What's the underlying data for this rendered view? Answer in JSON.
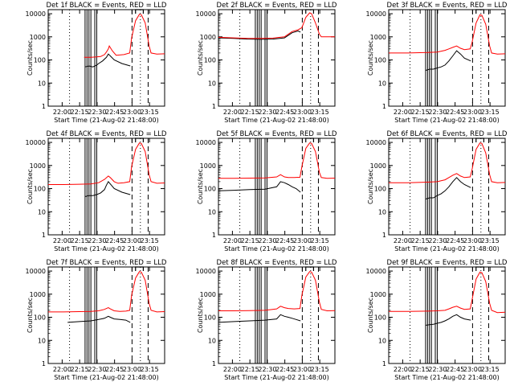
{
  "figure": {
    "colors": {
      "events": "#000000",
      "lld": "#ff0000",
      "axes": "#000000"
    },
    "common": {
      "xlabel": "Start Time (21-Aug-02 21:48:00)",
      "ylabel": "Counts/sec",
      "xtick_labels": [
        "22:00",
        "22:15",
        "22:30",
        "22:45",
        "23:00",
        "23:15"
      ],
      "xtick_minutes": [
        720,
        1620,
        2520,
        3420,
        4320,
        5220
      ],
      "ytick_labels": [
        "1",
        "10",
        "100",
        "1000",
        "10000"
      ],
      "ytick_values": [
        1,
        10,
        100,
        1000,
        10000
      ]
    }
  },
  "chart_data": [
    {
      "type": "line",
      "title": "Det 1f BLACK = Events, RED = LLD",
      "x_unit": "seconds since start",
      "xlim": [
        0,
        6000
      ],
      "ylim": [
        1,
        15000
      ],
      "log_y": true,
      "series": [
        {
          "name": "Events",
          "color": "#000000",
          "x": [
            1900,
            2100,
            2300,
            2500,
            2600,
            2800,
            3000,
            3100,
            3200,
            3400,
            3800,
            4230
          ],
          "y": [
            50,
            55,
            50,
            60,
            70,
            90,
            130,
            180,
            150,
            100,
            70,
            55
          ]
        },
        {
          "name": "LLD",
          "color": "#ff0000",
          "x": [
            1850,
            2200,
            2500,
            2700,
            2900,
            3000,
            3100,
            3150,
            3300,
            3500,
            3900,
            4200,
            4300,
            4500,
            4700,
            4800,
            5000,
            5200,
            5300,
            5600,
            6000
          ],
          "y": [
            130,
            130,
            135,
            140,
            170,
            220,
            300,
            400,
            250,
            160,
            170,
            200,
            900,
            5000,
            9500,
            9000,
            4000,
            400,
            200,
            180,
            185
          ]
        }
      ],
      "vlines_dotted": [
        1100,
        4750
      ],
      "vlines_solid": [
        1900,
        2000,
        2100,
        2200,
        2400,
        2500
      ],
      "vlines_dashed": [
        4320,
        5150
      ],
      "top_bar": [
        4500,
        4900
      ]
    },
    {
      "type": "line",
      "title": "Det 2f BLACK = Events, RED = LLD",
      "x_unit": "seconds since start",
      "xlim": [
        0,
        6000
      ],
      "ylim": [
        1,
        15000
      ],
      "log_y": true,
      "series": [
        {
          "name": "Events",
          "color": "#000000",
          "x": [
            0,
            800,
            1500,
            2200,
            2800,
            3400,
            3800,
            4100,
            4230
          ],
          "y": [
            900,
            850,
            800,
            780,
            800,
            900,
            1500,
            1800,
            1600
          ]
        },
        {
          "name": "LLD",
          "color": "#ff0000",
          "x": [
            0,
            800,
            1500,
            2200,
            2800,
            3400,
            3800,
            4100,
            4300,
            4500,
            4700,
            4800,
            5000,
            5200,
            5300,
            5600,
            6000
          ],
          "y": [
            950,
            900,
            850,
            850,
            880,
            1000,
            1700,
            2000,
            2500,
            7000,
            11000,
            10000,
            4000,
            1300,
            1000,
            1000,
            1000
          ]
        }
      ],
      "vlines_dotted": [
        1100,
        4750
      ],
      "vlines_solid": [
        1900,
        2000,
        2100,
        2200,
        2400,
        2500
      ],
      "vlines_dashed": [
        4320,
        5150
      ],
      "top_bar": [
        4500,
        4900
      ]
    },
    {
      "type": "line",
      "title": "Det 3f BLACK = Events, RED = LLD",
      "x_unit": "seconds since start",
      "xlim": [
        0,
        6000
      ],
      "ylim": [
        1,
        15000
      ],
      "log_y": true,
      "series": [
        {
          "name": "Events",
          "color": "#000000",
          "x": [
            1900,
            2100,
            2300,
            2500,
            2700,
            2900,
            3100,
            3300,
            3500,
            3700,
            3900,
            4230
          ],
          "y": [
            35,
            40,
            40,
            45,
            50,
            60,
            90,
            150,
            250,
            180,
            120,
            90
          ]
        },
        {
          "name": "LLD",
          "color": "#ff0000",
          "x": [
            0,
            1000,
            2000,
            2500,
            2900,
            3100,
            3300,
            3500,
            3700,
            3900,
            4200,
            4300,
            4500,
            4700,
            4800,
            5000,
            5200,
            5300,
            5600,
            6000
          ],
          "y": [
            200,
            200,
            210,
            220,
            260,
            300,
            350,
            400,
            320,
            280,
            300,
            600,
            4000,
            9000,
            8500,
            3500,
            400,
            200,
            180,
            185
          ]
        }
      ],
      "vlines_dotted": [
        1100,
        4750
      ],
      "vlines_solid": [
        1900,
        2000,
        2100,
        2200,
        2400,
        2500
      ],
      "vlines_dashed": [
        4320,
        5150
      ],
      "top_bar": [
        4500,
        4900
      ]
    },
    {
      "type": "line",
      "title": "Det 4f BLACK = Events, RED = LLD",
      "x_unit": "seconds since start",
      "xlim": [
        0,
        6000
      ],
      "ylim": [
        1,
        15000
      ],
      "log_y": true,
      "series": [
        {
          "name": "Events",
          "color": "#000000",
          "x": [
            1900,
            2100,
            2300,
            2500,
            2700,
            2900,
            3000,
            3100,
            3200,
            3400,
            3800,
            4230
          ],
          "y": [
            45,
            50,
            50,
            55,
            65,
            90,
            140,
            200,
            160,
            100,
            70,
            55
          ]
        },
        {
          "name": "LLD",
          "color": "#ff0000",
          "x": [
            0,
            800,
            1600,
            2200,
            2600,
            2900,
            3100,
            3200,
            3400,
            3600,
            3900,
            4200,
            4300,
            4500,
            4700,
            4800,
            5000,
            5200,
            5300,
            5600,
            6000
          ],
          "y": [
            150,
            150,
            155,
            160,
            180,
            250,
            350,
            300,
            200,
            170,
            180,
            200,
            900,
            5000,
            9500,
            9000,
            4000,
            400,
            200,
            170,
            175
          ]
        }
      ],
      "vlines_dotted": [
        1100,
        4750
      ],
      "vlines_solid": [
        1900,
        2000,
        2100,
        2200,
        2400,
        2500
      ],
      "vlines_dashed": [
        4320,
        5150
      ],
      "top_bar": [
        4500,
        4900
      ]
    },
    {
      "type": "line",
      "title": "Det 5f BLACK = Events, RED = LLD",
      "x_unit": "seconds since start",
      "xlim": [
        0,
        6000
      ],
      "ylim": [
        1,
        15000
      ],
      "log_y": true,
      "series": [
        {
          "name": "Events",
          "color": "#000000",
          "x": [
            0,
            800,
            1600,
            2400,
            3000,
            3200,
            3400,
            3600,
            3800,
            4000,
            4230
          ],
          "y": [
            80,
            85,
            90,
            95,
            120,
            200,
            180,
            150,
            120,
            100,
            70
          ]
        },
        {
          "name": "LLD",
          "color": "#ff0000",
          "x": [
            0,
            800,
            1600,
            2400,
            3000,
            3200,
            3400,
            3600,
            3900,
            4200,
            4300,
            4500,
            4700,
            4800,
            5000,
            5200,
            5300,
            5600,
            6000
          ],
          "y": [
            280,
            280,
            285,
            290,
            320,
            400,
            320,
            300,
            300,
            310,
            900,
            5500,
            9500,
            9000,
            4000,
            500,
            300,
            280,
            285
          ]
        }
      ],
      "vlines_dotted": [
        1100,
        4750
      ],
      "vlines_solid": [
        1900,
        2000,
        2100,
        2200,
        2400,
        2500
      ],
      "vlines_dashed": [
        4320,
        5150
      ],
      "top_bar": [
        4500,
        4900
      ]
    },
    {
      "type": "line",
      "title": "Det 6f BLACK = Events, RED = LLD",
      "x_unit": "seconds since start",
      "xlim": [
        0,
        6000
      ],
      "ylim": [
        1,
        15000
      ],
      "log_y": true,
      "series": [
        {
          "name": "Events",
          "color": "#000000",
          "x": [
            1900,
            2100,
            2300,
            2500,
            2700,
            2900,
            3100,
            3300,
            3500,
            3700,
            3900,
            4230
          ],
          "y": [
            35,
            40,
            40,
            50,
            60,
            80,
            120,
            200,
            300,
            200,
            150,
            110
          ]
        },
        {
          "name": "LLD",
          "color": "#ff0000",
          "x": [
            0,
            1000,
            2000,
            2500,
            2900,
            3100,
            3300,
            3500,
            3700,
            3900,
            4200,
            4300,
            4500,
            4700,
            4800,
            5000,
            5200,
            5300,
            5600,
            6000
          ],
          "y": [
            180,
            180,
            190,
            200,
            240,
            300,
            380,
            450,
            350,
            300,
            320,
            700,
            5000,
            9500,
            9000,
            3500,
            400,
            200,
            180,
            185
          ]
        }
      ],
      "vlines_dotted": [
        1100,
        4750
      ],
      "vlines_solid": [
        1900,
        2000,
        2100,
        2200,
        2400,
        2500
      ],
      "vlines_dashed": [
        4320,
        5150
      ],
      "top_bar": [
        4500,
        4900
      ]
    },
    {
      "type": "line",
      "title": "Det 7f BLACK = Events, RED = LLD",
      "x_unit": "seconds since start",
      "xlim": [
        0,
        6000
      ],
      "ylim": [
        1,
        15000
      ],
      "log_y": true,
      "series": [
        {
          "name": "Events",
          "color": "#000000",
          "x": [
            1000,
            1600,
            2200,
            2600,
            2900,
            3100,
            3200,
            3400,
            3700,
            4000,
            4230
          ],
          "y": [
            60,
            65,
            70,
            80,
            90,
            110,
            100,
            85,
            80,
            75,
            60
          ]
        },
        {
          "name": "LLD",
          "color": "#ff0000",
          "x": [
            0,
            800,
            1600,
            2200,
            2600,
            2900,
            3100,
            3200,
            3400,
            3700,
            4000,
            4200,
            4300,
            4500,
            4700,
            4800,
            5000,
            5200,
            5300,
            5600,
            6000
          ],
          "y": [
            170,
            170,
            175,
            180,
            190,
            220,
            260,
            230,
            190,
            180,
            185,
            200,
            900,
            5000,
            9500,
            9000,
            4000,
            400,
            200,
            170,
            175
          ]
        }
      ],
      "vlines_dotted": [
        1100,
        4750
      ],
      "vlines_solid": [
        1900,
        2000,
        2100,
        2200,
        2400,
        2500
      ],
      "vlines_dashed": [
        4320,
        5150
      ],
      "top_bar": [
        4500,
        4900
      ]
    },
    {
      "type": "line",
      "title": "Det 8f BLACK = Events, RED = LLD",
      "x_unit": "seconds since start",
      "xlim": [
        0,
        6000
      ],
      "ylim": [
        1,
        15000
      ],
      "log_y": true,
      "series": [
        {
          "name": "Events",
          "color": "#000000",
          "x": [
            0,
            800,
            1600,
            2400,
            3000,
            3200,
            3400,
            3600,
            3800,
            4000,
            4230
          ],
          "y": [
            60,
            65,
            70,
            75,
            85,
            130,
            110,
            100,
            90,
            80,
            70
          ]
        },
        {
          "name": "LLD",
          "color": "#ff0000",
          "x": [
            0,
            800,
            1600,
            2400,
            3000,
            3200,
            3400,
            3600,
            3900,
            4200,
            4300,
            4500,
            4700,
            4800,
            5000,
            5200,
            5300,
            5600,
            6000
          ],
          "y": [
            190,
            190,
            195,
            200,
            230,
            300,
            260,
            240,
            230,
            240,
            900,
            5500,
            9500,
            9000,
            4000,
            450,
            220,
            190,
            195
          ]
        }
      ],
      "vlines_dotted": [
        1100,
        4750
      ],
      "vlines_solid": [
        1900,
        2000,
        2100,
        2200,
        2400,
        2500
      ],
      "vlines_dashed": [
        4320,
        5150
      ],
      "top_bar": [
        4500,
        4900
      ]
    },
    {
      "type": "line",
      "title": "Det 9f BLACK = Events, RED = LLD",
      "x_unit": "seconds since start",
      "xlim": [
        0,
        6000
      ],
      "ylim": [
        1,
        15000
      ],
      "log_y": true,
      "series": [
        {
          "name": "Events",
          "color": "#000000",
          "x": [
            1900,
            2100,
            2300,
            2500,
            2700,
            2900,
            3100,
            3300,
            3500,
            3700,
            3900,
            4230
          ],
          "y": [
            45,
            48,
            50,
            55,
            60,
            70,
            85,
            110,
            130,
            100,
            85,
            75
          ]
        },
        {
          "name": "LLD",
          "color": "#ff0000",
          "x": [
            0,
            1000,
            2000,
            2500,
            2900,
            3100,
            3300,
            3500,
            3700,
            3900,
            4200,
            4300,
            4500,
            4700,
            4800,
            5000,
            5200,
            5300,
            5600,
            6000
          ],
          "y": [
            180,
            180,
            185,
            190,
            200,
            230,
            270,
            300,
            250,
            220,
            230,
            600,
            4500,
            9000,
            8500,
            3500,
            400,
            200,
            160,
            165
          ]
        }
      ],
      "vlines_dotted": [
        1100,
        4750
      ],
      "vlines_solid": [
        1900,
        2000,
        2100,
        2200,
        2400,
        2500
      ],
      "vlines_dashed": [
        4320,
        5150
      ],
      "top_bar": [
        4500,
        4900
      ]
    }
  ]
}
